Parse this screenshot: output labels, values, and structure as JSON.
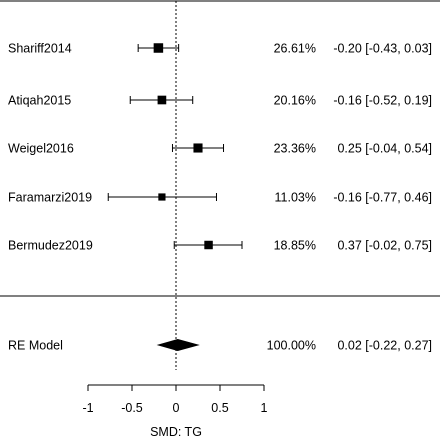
{
  "chart_data": {
    "type": "forest",
    "xlabel": "SMD: TG",
    "xticks": [
      -1,
      -0.5,
      0,
      0.5,
      1
    ],
    "xlim": [
      -1,
      1
    ],
    "reference_line": 0,
    "studies": [
      {
        "label": "Shariff2014",
        "estimate": -0.2,
        "ci_low": -0.43,
        "ci_high": 0.03,
        "weight": 26.61,
        "weight_text": "26.61%",
        "ci_text": "-0.20 [-0.43, 0.03]"
      },
      {
        "label": "Atiqah2015",
        "estimate": -0.16,
        "ci_low": -0.52,
        "ci_high": 0.19,
        "weight": 20.16,
        "weight_text": "20.16%",
        "ci_text": "-0.16 [-0.52, 0.19]"
      },
      {
        "label": "Weigel2016",
        "estimate": 0.25,
        "ci_low": -0.04,
        "ci_high": 0.54,
        "weight": 23.36,
        "weight_text": "23.36%",
        "ci_text": "0.25 [-0.04, 0.54]"
      },
      {
        "label": "Faramarzi2019",
        "estimate": -0.16,
        "ci_low": -0.77,
        "ci_high": 0.46,
        "weight": 11.03,
        "weight_text": "11.03%",
        "ci_text": "-0.16 [-0.77, 0.46]"
      },
      {
        "label": "Bermudez2019",
        "estimate": 0.37,
        "ci_low": -0.02,
        "ci_high": 0.75,
        "weight": 18.85,
        "weight_text": "18.85%",
        "ci_text": "0.37 [-0.02, 0.75]"
      }
    ],
    "summary": {
      "label": "RE Model",
      "estimate": 0.02,
      "ci_low": -0.22,
      "ci_high": 0.27,
      "weight_text": "100.00%",
      "ci_text": "0.02 [-0.22, 0.27]"
    }
  }
}
